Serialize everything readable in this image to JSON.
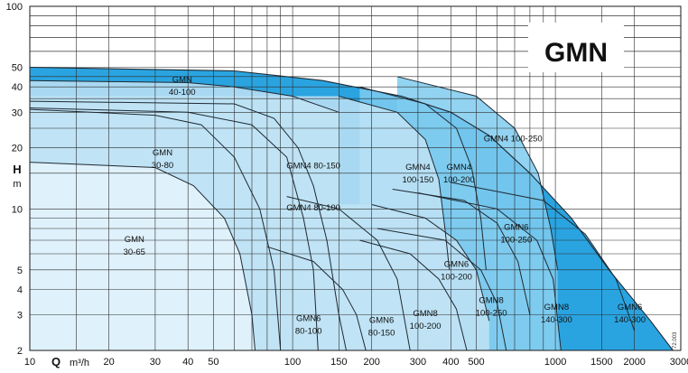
{
  "chart_data": {
    "type": "area",
    "title": "GMN",
    "xlabel": "Q",
    "xunit": "m³/h",
    "ylabel": "H",
    "yunit": "m",
    "xscale": "log",
    "yscale": "log",
    "xlim": [
      10,
      3000
    ],
    "ylim": [
      2,
      100
    ],
    "x_ticks": [
      10,
      20,
      30,
      40,
      50,
      100,
      150,
      200,
      300,
      400,
      500,
      1000,
      1500,
      2000,
      3000
    ],
    "y_ticks": [
      2,
      3,
      4,
      5,
      10,
      20,
      30,
      40,
      50,
      100
    ],
    "grid": true,
    "corner_code": "72.003",
    "colors": {
      "fill_light": "#e4f3fb",
      "fill_mid": "#bfe3f5",
      "fill_deep": "#7fcbef",
      "fill_outer": "#2aa4e0",
      "curve": "#1f2a33",
      "grid": "#2b2b2b"
    },
    "envelope": {
      "name": "GMN 6 140-300",
      "points": [
        [
          10,
          50
        ],
        [
          60,
          48
        ],
        [
          130,
          43
        ],
        [
          260,
          36
        ],
        [
          400,
          30
        ],
        [
          560,
          23
        ],
        [
          800,
          15
        ],
        [
          1150,
          9
        ],
        [
          1600,
          5
        ],
        [
          2300,
          2.8
        ],
        [
          2800,
          2
        ]
      ]
    },
    "regions": [
      {
        "label": "GMN 40-100",
        "curve": [
          [
            10,
            43
          ],
          [
            40,
            42
          ],
          [
            60,
            40
          ],
          [
            100,
            36
          ],
          [
            150,
            30
          ]
        ],
        "label_at": [
          38,
          40
        ],
        "depth": 2
      },
      {
        "label": "GMN 30-80",
        "curve": [
          [
            10,
            31
          ],
          [
            30,
            29
          ],
          [
            45,
            26
          ],
          [
            60,
            18
          ],
          [
            75,
            10
          ],
          [
            85,
            5
          ],
          [
            90,
            2
          ]
        ],
        "label_at": [
          32,
          17.5
        ],
        "depth": 1
      },
      {
        "label": "GMN 30-65",
        "curve": [
          [
            10,
            17
          ],
          [
            30,
            16
          ],
          [
            42,
            13
          ],
          [
            55,
            9
          ],
          [
            63,
            6
          ],
          [
            70,
            3
          ],
          [
            72,
            2
          ]
        ],
        "label_at": [
          25,
          6.5
        ],
        "depth": 0
      },
      {
        "label": "GMN4 80-150",
        "curve": [
          [
            10,
            34
          ],
          [
            60,
            33
          ],
          [
            85,
            28
          ],
          [
            105,
            20
          ],
          [
            120,
            13
          ],
          [
            135,
            7
          ],
          [
            150,
            3
          ],
          [
            160,
            2
          ]
        ],
        "label_at": [
          120,
          15.8
        ],
        "depth": 2
      },
      {
        "label": "GMN4 80-100",
        "curve": [
          [
            10,
            31.5
          ],
          [
            40,
            30
          ],
          [
            70,
            26
          ],
          [
            95,
            18
          ],
          [
            110,
            9
          ],
          [
            120,
            5
          ],
          [
            125,
            2
          ]
        ],
        "label_at": [
          120,
          9.8
        ],
        "depth": 1
      },
      {
        "label": "GMN6 80-100",
        "curve": [
          [
            80,
            6.5
          ],
          [
            120,
            5.5
          ],
          [
            155,
            4
          ],
          [
            175,
            3
          ],
          [
            190,
            2
          ]
        ],
        "label_at": [
          115,
          2.65
        ],
        "depth": 1
      },
      {
        "label": "GMN6 80-150",
        "curve": [
          [
            95,
            11.5
          ],
          [
            150,
            10
          ],
          [
            210,
            7
          ],
          [
            250,
            4.5
          ],
          [
            280,
            2
          ]
        ],
        "label_at": [
          218,
          2.6
        ],
        "depth": 2
      },
      {
        "label": "GMN4 100-150",
        "curve": [
          [
            150,
            36
          ],
          [
            250,
            30
          ],
          [
            320,
            22
          ],
          [
            360,
            14
          ],
          [
            380,
            8
          ],
          [
            395,
            5
          ]
        ],
        "label_at": [
          300,
          14.8
        ],
        "depth": 2
      },
      {
        "label": "GMN4 100-200",
        "curve": [
          [
            180,
            40
          ],
          [
            320,
            33
          ],
          [
            420,
            25
          ],
          [
            480,
            16
          ],
          [
            520,
            9
          ],
          [
            545,
            5
          ]
        ],
        "label_at": [
          430,
          14.8
        ],
        "depth": 3
      },
      {
        "label": "GMN4 100-250",
        "curve": [
          [
            250,
            45
          ],
          [
            500,
            36
          ],
          [
            700,
            25
          ],
          [
            860,
            15
          ],
          [
            960,
            8
          ],
          [
            1020,
            5
          ]
        ],
        "label_at": [
          690,
          21.5
        ],
        "depth": 3
      },
      {
        "label": "GMN6 100-200",
        "curve": [
          [
            200,
            10.5
          ],
          [
            320,
            9
          ],
          [
            420,
            7
          ],
          [
            500,
            5
          ],
          [
            560,
            2.8
          ]
        ],
        "label_at": [
          420,
          4.9
        ],
        "depth": 2
      },
      {
        "label": "GMN6 100-250",
        "curve": [
          [
            240,
            12.5
          ],
          [
            450,
            11
          ],
          [
            600,
            8.5
          ],
          [
            720,
            5.5
          ],
          [
            800,
            3
          ]
        ],
        "label_at": [
          710,
          7.5
        ],
        "depth": 3
      },
      {
        "label": "GMN8 100-200",
        "curve": [
          [
            180,
            7
          ],
          [
            280,
            6
          ],
          [
            360,
            4.5
          ],
          [
            420,
            3.2
          ],
          [
            460,
            2
          ]
        ],
        "label_at": [
          320,
          2.8
        ],
        "depth": 2
      },
      {
        "label": "GMN8 100-250",
        "curve": [
          [
            210,
            8
          ],
          [
            380,
            7
          ],
          [
            520,
            5
          ],
          [
            600,
            3.4
          ],
          [
            650,
            2
          ]
        ],
        "label_at": [
          570,
          3.25
        ],
        "depth": 3
      },
      {
        "label": "GMN8 140-300",
        "curve": [
          [
            300,
            12
          ],
          [
            600,
            10
          ],
          [
            850,
            7
          ],
          [
            980,
            4.5
          ],
          [
            1050,
            2
          ]
        ],
        "label_at": [
          1010,
          3.02
        ],
        "depth": 3
      },
      {
        "label": "GMN6 140-300",
        "curve": [
          [
            400,
            13.5
          ],
          [
            900,
            11
          ],
          [
            1300,
            7.5
          ],
          [
            1700,
            4.5
          ],
          [
            2000,
            2.5
          ]
        ],
        "label_at": [
          1920,
          3.02
        ],
        "depth": 4
      }
    ]
  }
}
